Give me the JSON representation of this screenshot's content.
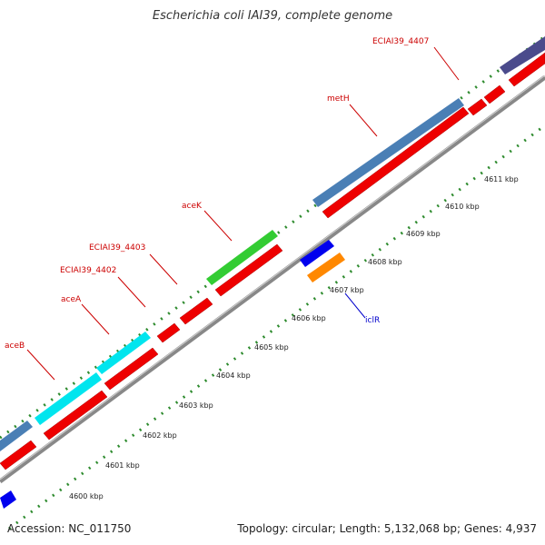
{
  "title": "Escherichia coli IAI39, complete genome",
  "footer": {
    "accession": "Accession: NC_011750",
    "summary": "Topology: circular; Length: 5,132,068 bp; Genes: 4,937"
  },
  "colors": {
    "gene_label": "#cc0000",
    "blue_label": "#0000cc",
    "backbone": "#888888",
    "ruler": "#2e8b2e",
    "cds": "#ee0000",
    "steelblue": "#4a7fb5",
    "cyan": "#00e5ee",
    "green": "#33cc33",
    "purple": "#4b4b8c",
    "blue": "#0000ee",
    "orange": "#ff8800"
  },
  "genes": [
    {
      "name": "aceB"
    },
    {
      "name": "aceA"
    },
    {
      "name": "ECIAI39_4402"
    },
    {
      "name": "ECIAI39_4403"
    },
    {
      "name": "aceK"
    },
    {
      "name": "metH"
    },
    {
      "name": "ECIAI39_4407"
    },
    {
      "name": "iclR"
    }
  ],
  "ticks": [
    "4600 kbp",
    "4601 kbp",
    "4602 kbp",
    "4603 kbp",
    "4604 kbp",
    "4605 kbp",
    "4606 kbp",
    "4607 kbp",
    "4608 kbp",
    "4609 kbp",
    "4610 kbp",
    "4611 kbp"
  ]
}
